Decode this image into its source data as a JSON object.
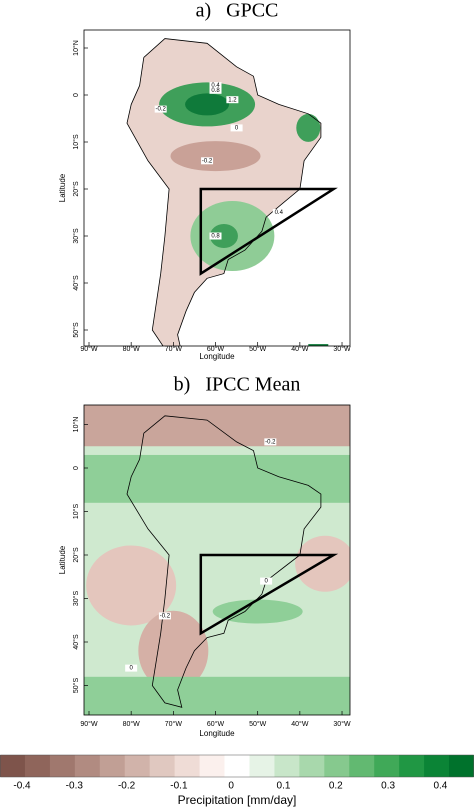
{
  "panels": [
    {
      "title": "a)   GPCC",
      "x_label": "Longitude",
      "y_label": "Latitude",
      "lon_ticks": [
        "90°W",
        "80°W",
        "70°W",
        "60°W",
        "50°W",
        "40°W",
        "30°W"
      ],
      "lat_ticks": [
        "10°N",
        "0",
        "10°S",
        "20°S",
        "30°S",
        "40°S",
        "50°S"
      ],
      "contour_labels": [
        "0.4",
        "0.8",
        "1.2",
        "-0.2",
        "-0.2",
        "0",
        "0.4",
        "0.8"
      ]
    },
    {
      "title": "b)   IPCC Mean",
      "x_label": "Longitude",
      "y_label": "Latitude",
      "lon_ticks": [
        "90°W",
        "80°W",
        "70°W",
        "60°W",
        "50°W",
        "40°W",
        "30°W"
      ],
      "lat_ticks": [
        "10°N",
        "0",
        "10°S",
        "20°S",
        "30°S",
        "40°S",
        "50°S"
      ],
      "contour_labels": [
        "-0.2",
        "0",
        "-0.2",
        "0"
      ]
    }
  ],
  "colorbar": {
    "ticks": [
      -0.4,
      -0.3,
      -0.2,
      -0.1,
      0,
      0.1,
      0.2,
      0.3,
      0.4
    ],
    "label": "Precipitation [mm/day]"
  }
}
